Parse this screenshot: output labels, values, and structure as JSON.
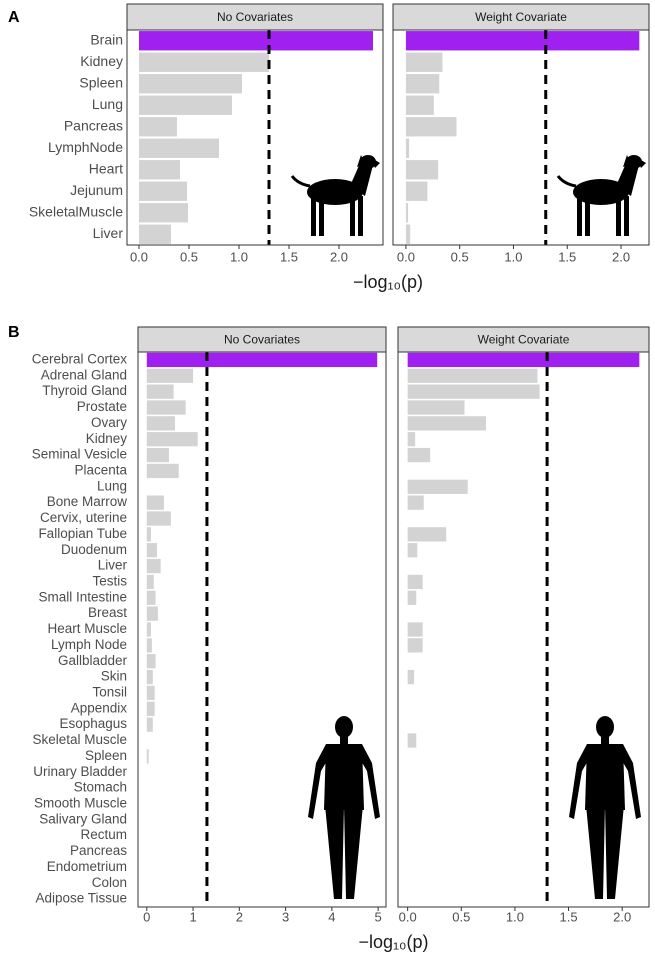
{
  "chart_data": [
    {
      "type": "bar",
      "orientation": "horizontal",
      "panel_label": "A",
      "x_label": "−log₁₀(p)",
      "color": "#d3d3d3",
      "highlight_color": "#a020f0",
      "highlight_index": 0,
      "categories": [
        "Brain",
        "Kidney",
        "Spleen",
        "Lung",
        "Pancreas",
        "LymphNode",
        "Heart",
        "Jejunum",
        "SkeletalMuscle",
        "Liver"
      ],
      "facets": [
        {
          "title": "No Covariates",
          "values": [
            2.34,
            1.3,
            1.03,
            0.93,
            0.38,
            0.8,
            0.41,
            0.48,
            0.49,
            0.32
          ],
          "xlim": [
            -0.12,
            2.44
          ],
          "threshold": 1.3,
          "xticks": [
            {
              "value": 0,
              "label": "0.0"
            },
            {
              "value": 0.5,
              "label": "0.5"
            },
            {
              "value": 1,
              "label": "1.0"
            },
            {
              "value": 1.5,
              "label": "1.5"
            },
            {
              "value": 2,
              "label": "2.0"
            }
          ]
        },
        {
          "title": "Weight Covariate",
          "values": [
            2.17,
            0.34,
            0.31,
            0.26,
            0.47,
            0.03,
            0.3,
            0.2,
            0.02,
            0.04
          ],
          "xlim": [
            -0.12,
            2.26
          ],
          "threshold": 1.3,
          "xticks": [
            {
              "value": 0,
              "label": "0.0"
            },
            {
              "value": 0.5,
              "label": "0.5"
            },
            {
              "value": 1,
              "label": "1.0"
            },
            {
              "value": 1.5,
              "label": "1.5"
            },
            {
              "value": 2,
              "label": "2.0"
            }
          ]
        }
      ]
    },
    {
      "type": "bar",
      "orientation": "horizontal",
      "panel_label": "B",
      "x_label": "−log₁₀(p)",
      "color": "#d3d3d3",
      "highlight_color": "#a020f0",
      "highlight_index": 0,
      "categories": [
        "Cerebral Cortex",
        "Adrenal Gland",
        "Thyroid Gland",
        "Prostate",
        "Ovary",
        "Kidney",
        "Seminal Vesicle",
        "Placenta",
        "Lung",
        "Bone Marrow",
        "Cervix, uterine",
        "Fallopian Tube",
        "Duodenum",
        "Liver",
        "Testis",
        "Small Intestine",
        "Breast",
        "Heart Muscle",
        "Lymph Node",
        "Gallbladder",
        "Skin",
        "Tonsil",
        "Appendix",
        "Esophagus",
        "Skeletal Muscle",
        "Spleen",
        "Urinary Bladder",
        "Stomach",
        "Smooth Muscle",
        "Salivary Gland",
        "Rectum",
        "Pancreas",
        "Endometrium",
        "Colon",
        "Adipose Tissue"
      ],
      "facets": [
        {
          "title": "No Covariates",
          "values": [
            4.98,
            1.0,
            0.58,
            0.84,
            0.61,
            1.1,
            0.48,
            0.69,
            0,
            0.37,
            0.52,
            0.09,
            0.22,
            0.3,
            0.15,
            0.19,
            0.24,
            0.09,
            0.11,
            0.19,
            0.13,
            0.17,
            0.17,
            0.13,
            0,
            0.04,
            0,
            0,
            0,
            0,
            0,
            0,
            0,
            0,
            0
          ],
          "xlim": [
            -0.19,
            5.17
          ],
          "threshold": 1.3,
          "xticks": [
            0,
            1,
            2,
            3,
            4,
            5
          ]
        },
        {
          "title": "Weight Covariate",
          "values": [
            2.16,
            1.21,
            1.23,
            0.53,
            0.73,
            0.07,
            0.21,
            0,
            0.56,
            0.15,
            0,
            0.36,
            0.09,
            0,
            0.14,
            0.08,
            0,
            0.14,
            0.14,
            0,
            0.06,
            0,
            0,
            0,
            0.08,
            0,
            0,
            0,
            0,
            0,
            0,
            0,
            0,
            0,
            0
          ],
          "xlim": [
            -0.09,
            2.25
          ],
          "threshold": 1.3,
          "xticks": [
            {
              "value": 0,
              "label": "0.0"
            },
            {
              "value": 0.5,
              "label": "0.5"
            },
            {
              "value": 1,
              "label": "1.0"
            },
            {
              "value": 1.5,
              "label": "1.5"
            },
            {
              "value": 2,
              "label": "2.0"
            }
          ]
        }
      ]
    }
  ]
}
